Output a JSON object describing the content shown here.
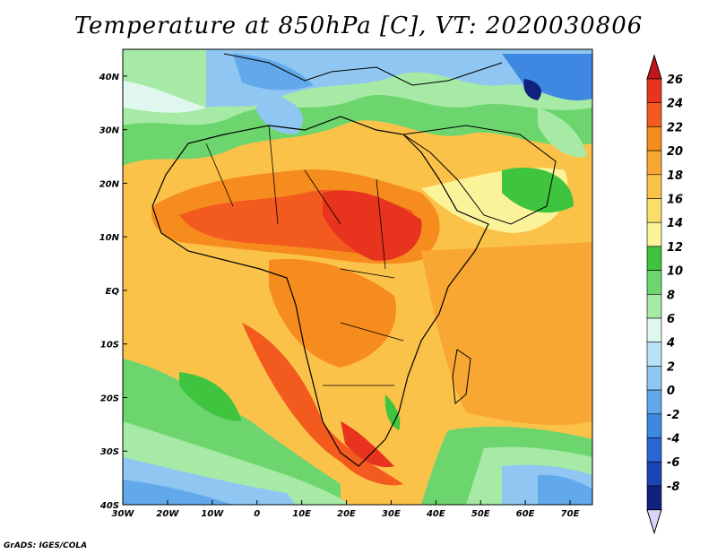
{
  "title": "Temperature at 850hPa [C], VT: 2020030806",
  "credit": "GrADS: IGES/COLA",
  "map": {
    "lon_range": [
      -30,
      75
    ],
    "lat_range": [
      -40,
      45
    ],
    "lon_ticks": [
      {
        "value": -30,
        "label": "30W"
      },
      {
        "value": -20,
        "label": "20W"
      },
      {
        "value": -10,
        "label": "10W"
      },
      {
        "value": 0,
        "label": "0"
      },
      {
        "value": 10,
        "label": "10E"
      },
      {
        "value": 20,
        "label": "20E"
      },
      {
        "value": 30,
        "label": "30E"
      },
      {
        "value": 40,
        "label": "40E"
      },
      {
        "value": 50,
        "label": "50E"
      },
      {
        "value": 60,
        "label": "60E"
      },
      {
        "value": 70,
        "label": "70E"
      }
    ],
    "lat_ticks": [
      {
        "value": 40,
        "label": "40N"
      },
      {
        "value": 30,
        "label": "30N"
      },
      {
        "value": 20,
        "label": "20N"
      },
      {
        "value": 10,
        "label": "10N"
      },
      {
        "value": 0,
        "label": "EQ"
      },
      {
        "value": -10,
        "label": "10S"
      },
      {
        "value": -20,
        "label": "20S"
      },
      {
        "value": -30,
        "label": "30S"
      },
      {
        "value": -40,
        "label": "40S"
      }
    ]
  },
  "colorbar": {
    "levels": [
      "26",
      "24",
      "22",
      "20",
      "18",
      "16",
      "14",
      "12",
      "10",
      "8",
      "6",
      "4",
      "2",
      "0",
      "-2",
      "-4",
      "-6",
      "-8"
    ],
    "colors": [
      "#e8341e",
      "#f25a1e",
      "#f78c1e",
      "#f9a733",
      "#fbc24a",
      "#fbde68",
      "#fbf39a",
      "#3ec43e",
      "#6dd56d",
      "#a6eaa6",
      "#dff7ee",
      "#b9e1f6",
      "#8fc7f2",
      "#62a9ec",
      "#3f88e2",
      "#2a67d4",
      "#1a44b6",
      "#10227e"
    ],
    "top_arrow": "#c3161a",
    "bottom_arrow": "#d6d6f8"
  }
}
